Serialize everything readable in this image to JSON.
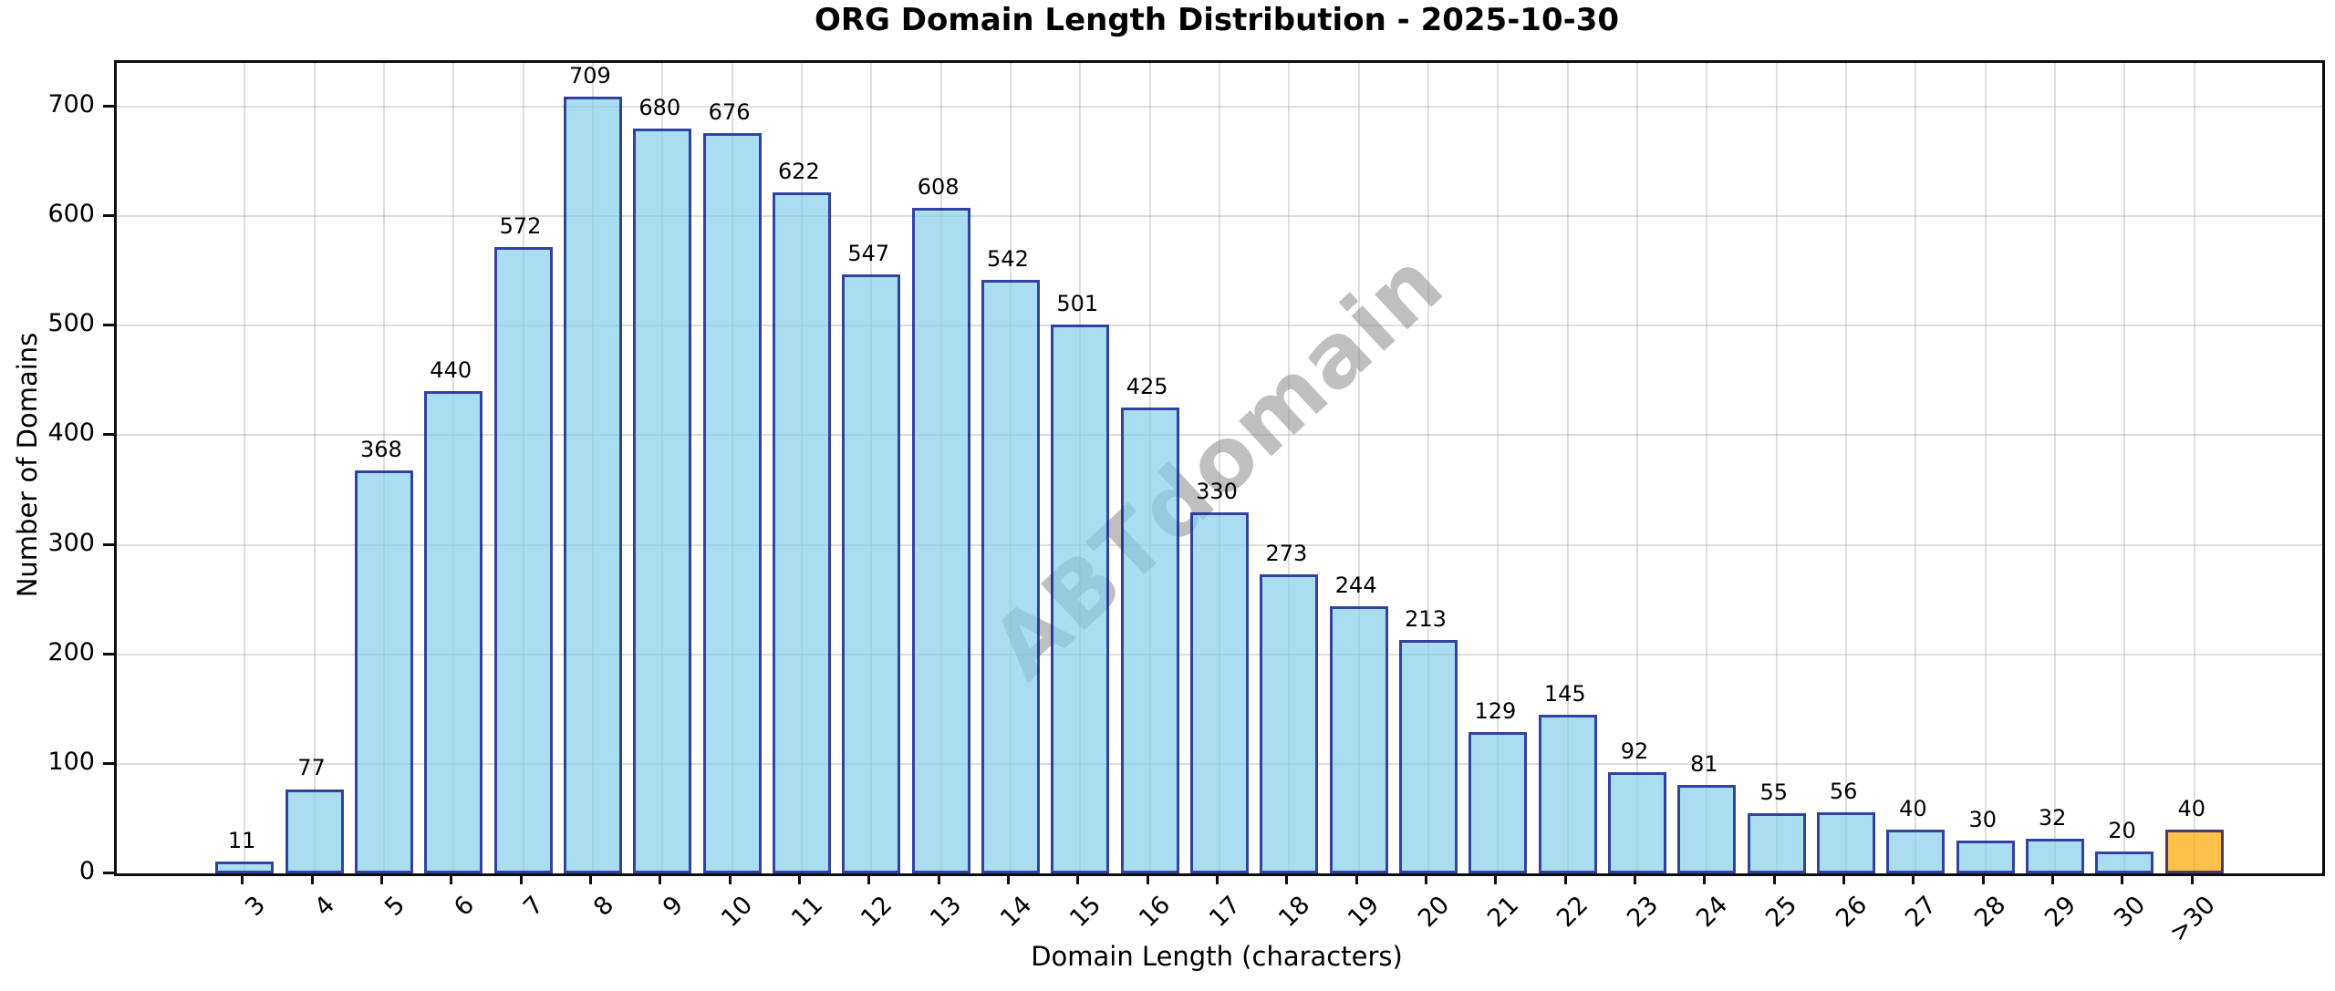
{
  "chart_data": {
    "type": "bar",
    "title": "ORG Domain Length Distribution - 2025-10-30",
    "xlabel": "Domain Length (characters)",
    "ylabel": "Number of Domains",
    "categories": [
      "3",
      "4",
      "5",
      "6",
      "7",
      "8",
      "9",
      "10",
      "11",
      "12",
      "13",
      "14",
      "15",
      "16",
      "17",
      "18",
      "19",
      "20",
      "21",
      "22",
      "23",
      "24",
      "25",
      "26",
      "27",
      "28",
      "29",
      "30",
      ">30"
    ],
    "values": [
      11,
      77,
      368,
      440,
      572,
      709,
      680,
      676,
      622,
      547,
      608,
      542,
      501,
      425,
      330,
      273,
      244,
      213,
      129,
      145,
      92,
      81,
      55,
      56,
      40,
      30,
      32,
      20,
      40
    ],
    "yticks": [
      0,
      100,
      200,
      300,
      400,
      500,
      600,
      700
    ],
    "ylim": [
      0,
      740
    ],
    "grid": "on",
    "legend": "none",
    "watermark": "ABTdomain",
    "colors": {
      "bar_fill": "rgba(135,206,235,0.7)",
      "bar_edge": "rgba(0,0,128,0.7)",
      "highlight_fill": "rgba(255,165,0,0.7)",
      "highlight_category": ">30",
      "grid": "#c8c8c8",
      "watermark": "rgba(128,128,128,0.5)"
    }
  }
}
